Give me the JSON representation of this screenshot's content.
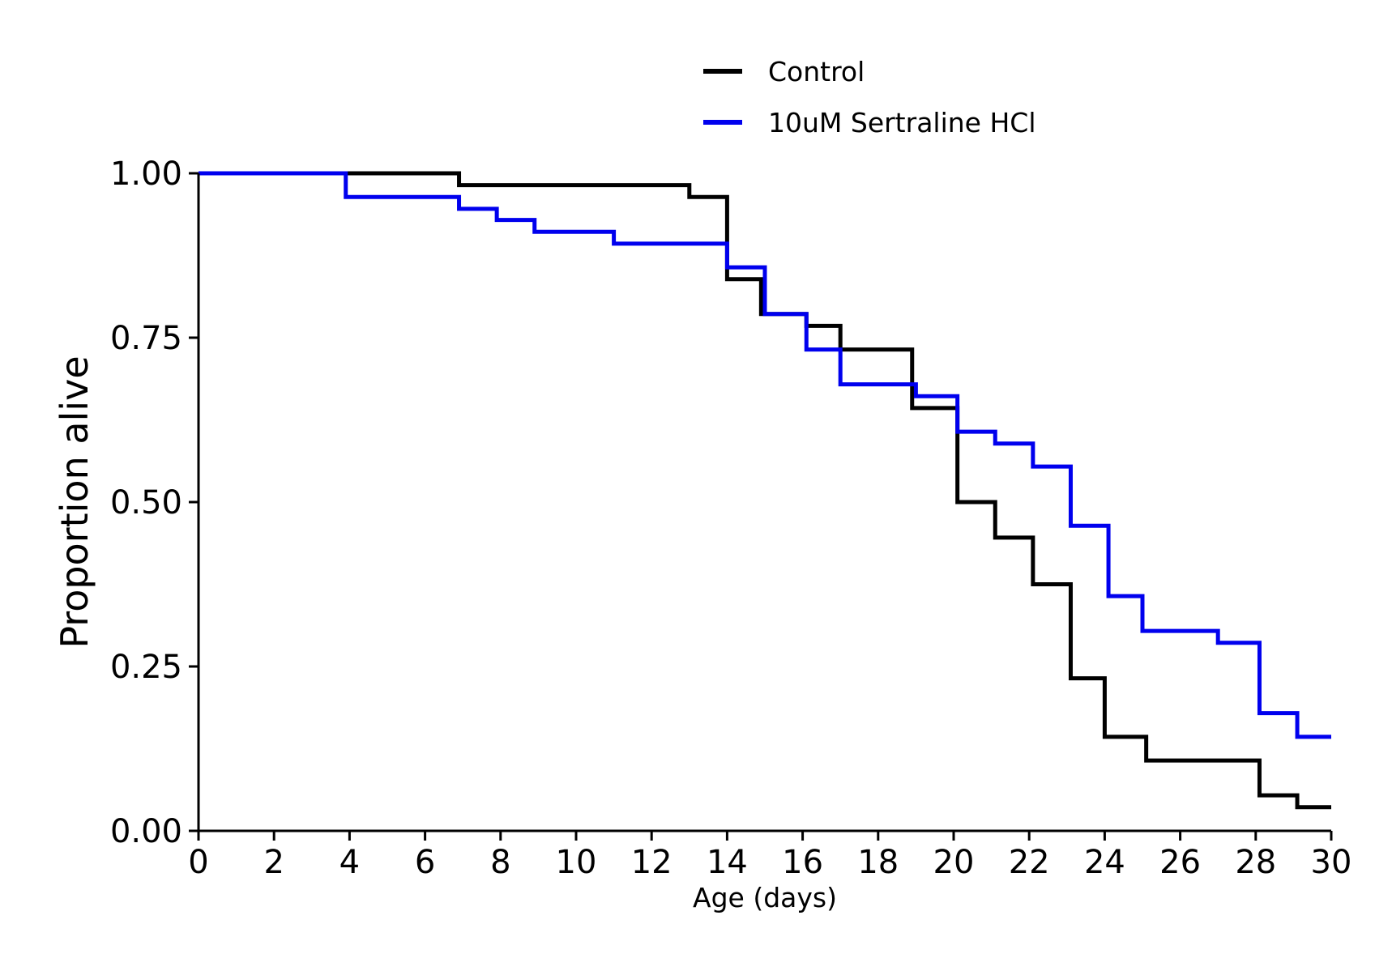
{
  "chart_data": {
    "type": "line",
    "subtype": "step",
    "title": "",
    "xlabel": "Age (days)",
    "ylabel": "Proportion alive",
    "xlim": [
      0,
      30
    ],
    "ylim": [
      0,
      1
    ],
    "xticks": [
      0,
      2,
      4,
      6,
      8,
      10,
      12,
      14,
      16,
      18,
      20,
      22,
      24,
      26,
      28,
      30
    ],
    "yticks": [
      0,
      0.25,
      0.5,
      0.75,
      1.0
    ],
    "ytick_labels": [
      "0.00",
      "0.25",
      "0.50",
      "0.75",
      "1.00"
    ],
    "grid": false,
    "legend_position": "top-center",
    "series": [
      {
        "name": "Control",
        "color": "#000000",
        "x": [
          0,
          6.9,
          13.0,
          14.0,
          14.9,
          16.1,
          17.0,
          18.9,
          20.1,
          21.1,
          22.1,
          23.1,
          24.0,
          25.1,
          28.1,
          29.1,
          30
        ],
        "y": [
          1.0,
          0.982,
          0.964,
          0.839,
          0.786,
          0.768,
          0.732,
          0.643,
          0.5,
          0.446,
          0.375,
          0.232,
          0.143,
          0.107,
          0.054,
          0.036,
          0.036
        ]
      },
      {
        "name": "10uM Sertraline HCl",
        "color": "#0000ee",
        "x": [
          0,
          3.9,
          6.9,
          7.9,
          8.9,
          11.0,
          14.0,
          15.0,
          16.1,
          17.0,
          19.0,
          20.1,
          21.1,
          22.1,
          23.1,
          24.1,
          25.0,
          27.0,
          28.1,
          29.1,
          30
        ],
        "y": [
          1.0,
          0.964,
          0.946,
          0.929,
          0.911,
          0.893,
          0.857,
          0.786,
          0.732,
          0.679,
          0.661,
          0.607,
          0.589,
          0.554,
          0.464,
          0.357,
          0.304,
          0.286,
          0.179,
          0.143,
          0.143
        ]
      }
    ]
  }
}
